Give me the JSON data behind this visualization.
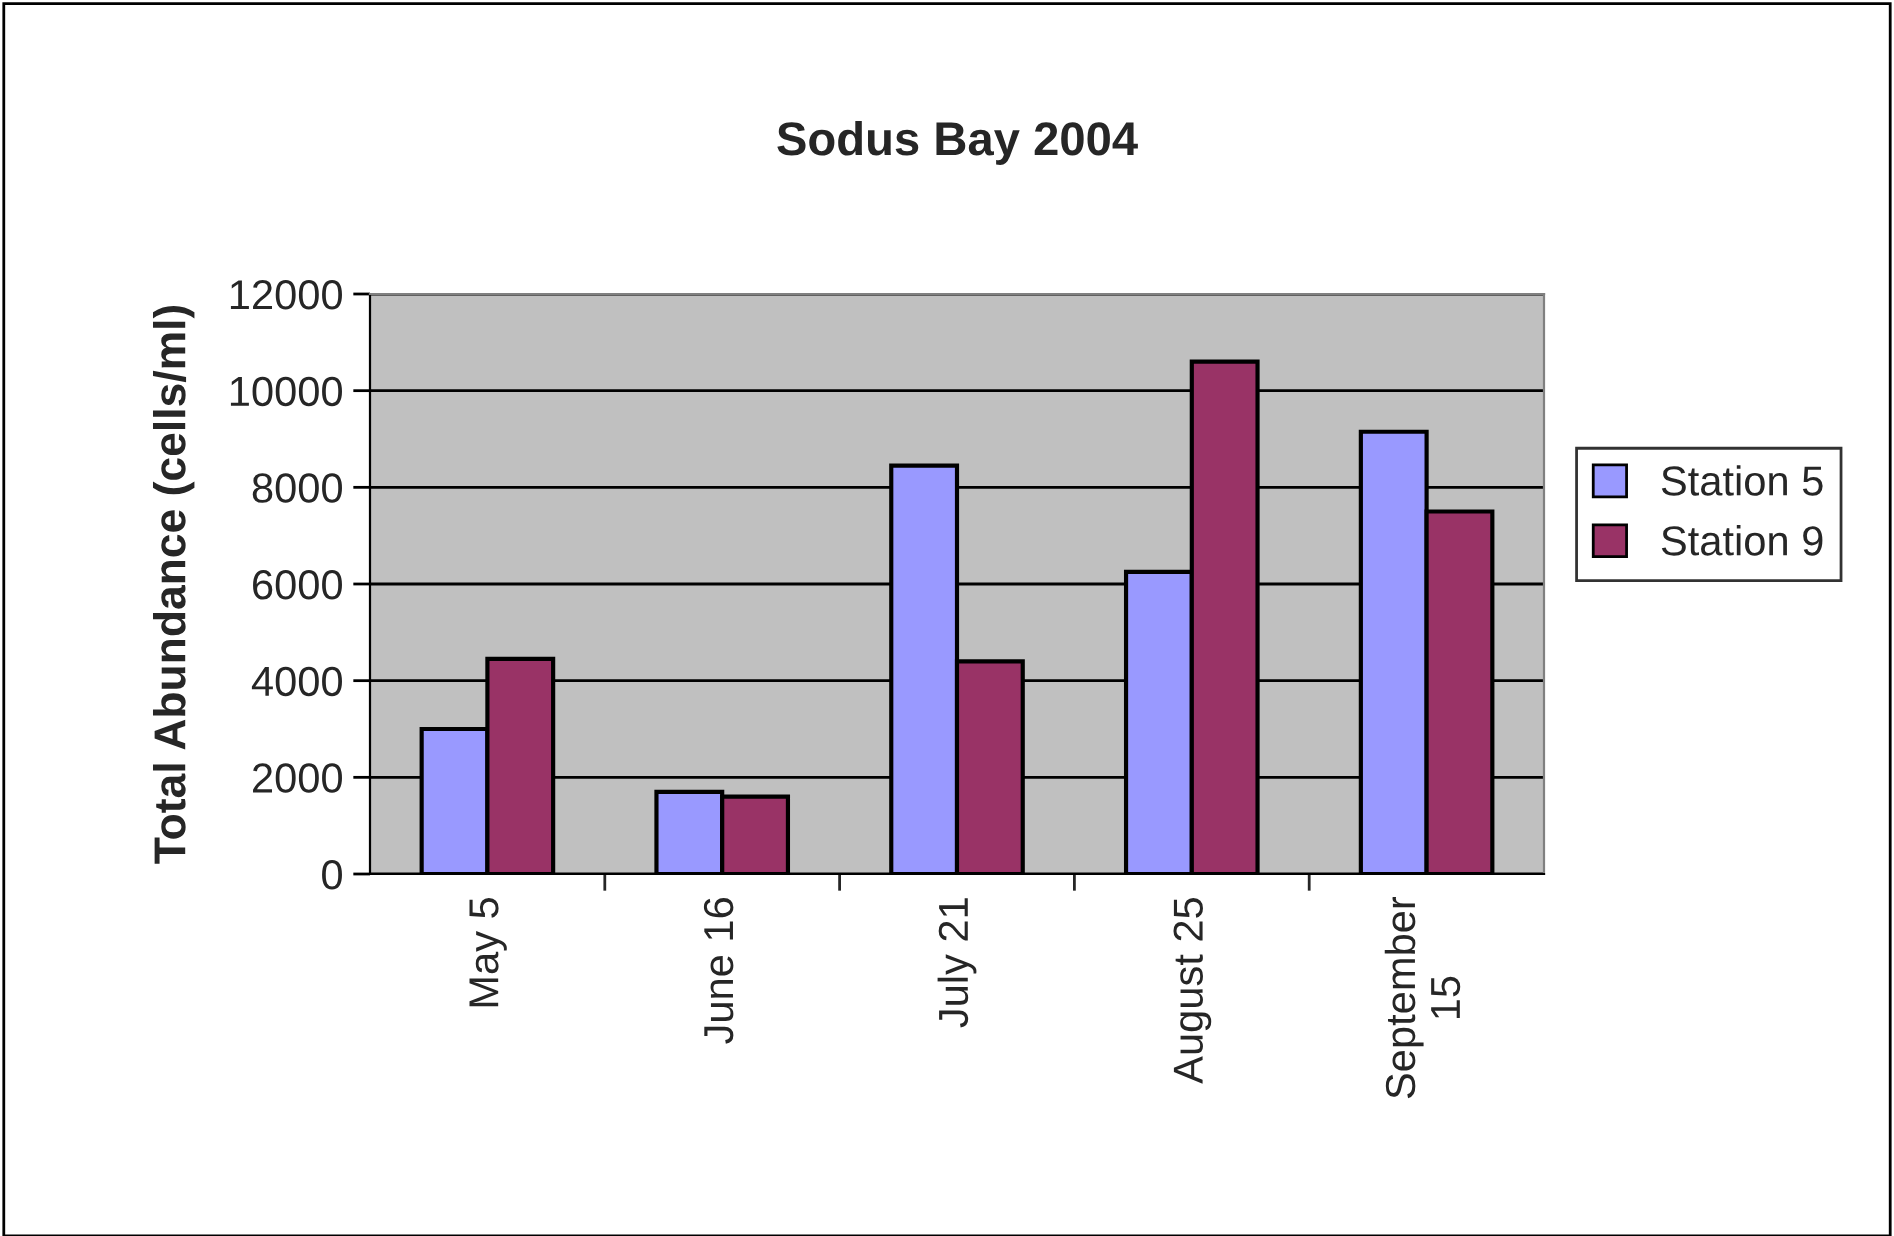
{
  "chart_data": {
    "type": "bar",
    "title": "Sodus Bay 2004",
    "ylabel": "Total Abundance (cells/ml)",
    "categories": [
      "May 5",
      "June 16",
      "July 21",
      "August 25",
      "September\n15"
    ],
    "series": [
      {
        "name": "Station 5",
        "color": "#9999ff",
        "values": [
          3000,
          1700,
          8450,
          6250,
          9150
        ]
      },
      {
        "name": "Station 9",
        "color": "#993366",
        "values": [
          4450,
          1600,
          4400,
          10600,
          7500
        ]
      }
    ],
    "ylim": [
      0,
      12000
    ],
    "yticks": [
      0,
      2000,
      4000,
      6000,
      8000,
      10000,
      12000
    ],
    "grid": "y",
    "legend": "right"
  }
}
